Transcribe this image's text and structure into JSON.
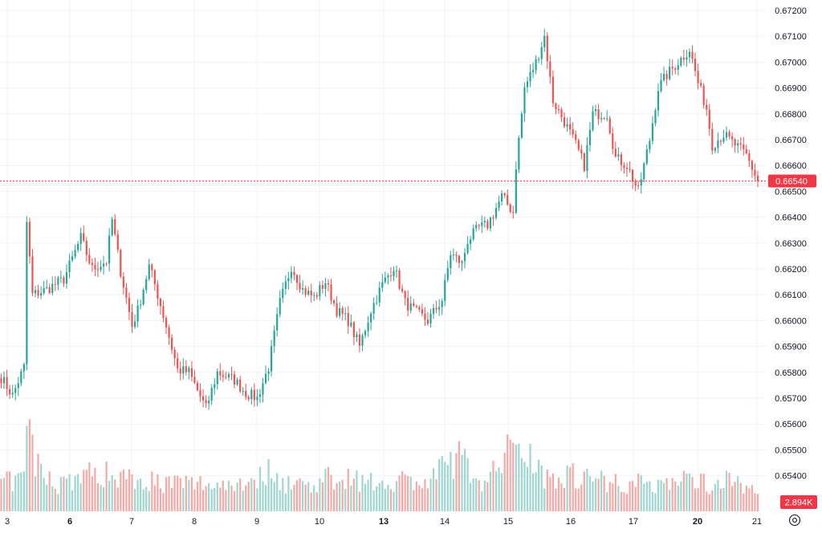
{
  "colors": {
    "up": "#26a69a",
    "down": "#ef5350",
    "up_volume": "#9fd6d0",
    "down_volume": "#f5a9a7",
    "grid": "#f0f3fa",
    "axis_text": "#131722",
    "badge_bg": "#f23645",
    "badge_text": "#ffffff",
    "price_line": "#f23645"
  },
  "price_axis": {
    "labels": [
      "0.67200",
      "0.67100",
      "0.67000",
      "0.66900",
      "0.66800",
      "0.66700",
      "0.66600",
      "0.66500",
      "0.66400",
      "0.66300",
      "0.66200",
      "0.66100",
      "0.66000",
      "0.65900",
      "0.65800",
      "0.65700",
      "0.65600",
      "0.65500",
      "0.65400"
    ]
  },
  "time_axis": {
    "labels": [
      {
        "text": "3",
        "bold": false
      },
      {
        "text": "6",
        "bold": true
      },
      {
        "text": "7",
        "bold": false
      },
      {
        "text": "8",
        "bold": false
      },
      {
        "text": "9",
        "bold": false
      },
      {
        "text": "10",
        "bold": false
      },
      {
        "text": "13",
        "bold": true
      },
      {
        "text": "14",
        "bold": false
      },
      {
        "text": "15",
        "bold": false
      },
      {
        "text": "16",
        "bold": false
      },
      {
        "text": "17",
        "bold": false
      },
      {
        "text": "20",
        "bold": true
      },
      {
        "text": "21",
        "bold": false
      }
    ]
  },
  "current_price": {
    "label": "0.66540",
    "value": 0.6654
  },
  "volume_badge": {
    "label": "2.894K"
  },
  "settings_icon": "gear-icon",
  "chart_data": {
    "type": "candlestick",
    "xlabel": "",
    "ylabel": "",
    "ylim": [
      0.6536,
      0.6724
    ],
    "grid": true,
    "legend": "none",
    "anchors": [
      [
        0,
        0.6578
      ],
      [
        4,
        0.6571
      ],
      [
        8,
        0.6582
      ],
      [
        9,
        0.6638
      ],
      [
        11,
        0.661
      ],
      [
        16,
        0.6612
      ],
      [
        22,
        0.6616
      ],
      [
        28,
        0.6632
      ],
      [
        32,
        0.662
      ],
      [
        37,
        0.6623
      ],
      [
        39,
        0.6639
      ],
      [
        42,
        0.6619
      ],
      [
        46,
        0.6598
      ],
      [
        48,
        0.6604
      ],
      [
        52,
        0.6621
      ],
      [
        54,
        0.6614
      ],
      [
        58,
        0.6598
      ],
      [
        62,
        0.6581
      ],
      [
        66,
        0.658
      ],
      [
        72,
        0.6566
      ],
      [
        76,
        0.658
      ],
      [
        82,
        0.6577
      ],
      [
        86,
        0.6572
      ],
      [
        90,
        0.657
      ],
      [
        94,
        0.6582
      ],
      [
        98,
        0.6607
      ],
      [
        102,
        0.6621
      ],
      [
        106,
        0.6612
      ],
      [
        110,
        0.6609
      ],
      [
        114,
        0.6615
      ],
      [
        118,
        0.6604
      ],
      [
        122,
        0.66
      ],
      [
        126,
        0.659
      ],
      [
        130,
        0.6604
      ],
      [
        134,
        0.6614
      ],
      [
        138,
        0.6621
      ],
      [
        142,
        0.6607
      ],
      [
        146,
        0.6603
      ],
      [
        150,
        0.66
      ],
      [
        155,
        0.6608
      ],
      [
        158,
        0.6626
      ],
      [
        162,
        0.6622
      ],
      [
        164,
        0.6631
      ],
      [
        168,
        0.6636
      ],
      [
        171,
        0.6637
      ],
      [
        176,
        0.6648
      ],
      [
        180,
        0.6642
      ],
      [
        181,
        0.666
      ],
      [
        184,
        0.669
      ],
      [
        188,
        0.67
      ],
      [
        191,
        0.671
      ],
      [
        194,
        0.6685
      ],
      [
        198,
        0.6677
      ],
      [
        202,
        0.6668
      ],
      [
        205,
        0.666
      ],
      [
        208,
        0.668
      ],
      [
        213,
        0.668
      ],
      [
        216,
        0.6663
      ],
      [
        220,
        0.666
      ],
      [
        224,
        0.665
      ],
      [
        228,
        0.667
      ],
      [
        231,
        0.669
      ],
      [
        234,
        0.6695
      ],
      [
        238,
        0.67
      ],
      [
        242,
        0.6705
      ],
      [
        245,
        0.6692
      ],
      [
        248,
        0.6682
      ],
      [
        250,
        0.6668
      ],
      [
        254,
        0.6672
      ],
      [
        258,
        0.6668
      ],
      [
        262,
        0.6664
      ],
      [
        266,
        0.6654
      ]
    ],
    "volume_anchors": [
      [
        0,
        0.3
      ],
      [
        8,
        0.35
      ],
      [
        9,
        0.9
      ],
      [
        10,
        0.95
      ],
      [
        12,
        0.5
      ],
      [
        20,
        0.3
      ],
      [
        30,
        0.4
      ],
      [
        40,
        0.4
      ],
      [
        50,
        0.35
      ],
      [
        60,
        0.3
      ],
      [
        70,
        0.3
      ],
      [
        80,
        0.3
      ],
      [
        90,
        0.35
      ],
      [
        95,
        0.45
      ],
      [
        100,
        0.3
      ],
      [
        110,
        0.3
      ],
      [
        120,
        0.4
      ],
      [
        130,
        0.3
      ],
      [
        140,
        0.35
      ],
      [
        150,
        0.3
      ],
      [
        160,
        0.6
      ],
      [
        170,
        0.3
      ],
      [
        180,
        0.7
      ],
      [
        181,
        0.9
      ],
      [
        190,
        0.4
      ],
      [
        200,
        0.4
      ],
      [
        210,
        0.35
      ],
      [
        220,
        0.3
      ],
      [
        230,
        0.3
      ],
      [
        240,
        0.35
      ],
      [
        250,
        0.3
      ],
      [
        260,
        0.35
      ],
      [
        266,
        0.15
      ]
    ]
  }
}
